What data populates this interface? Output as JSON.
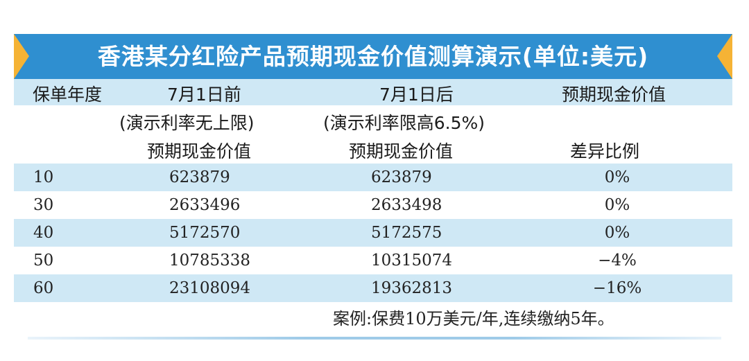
{
  "title": "香港某分红险产品预期现金价值测算演示(单位:美元)",
  "headers": {
    "year": "保单年度",
    "before": "7月1日前",
    "after": "7月1日后",
    "value_label": "预期现金价值",
    "before_note": "(演示利率无上限)",
    "after_note": "(演示利率限高6.5%)",
    "before_sub": "预期现金价值",
    "after_sub": "预期现金价值",
    "ratio_sub": "差异比例"
  },
  "rows": [
    {
      "year": "10",
      "before": "623879",
      "after": "623879",
      "ratio": "0%"
    },
    {
      "year": "30",
      "before": "2633496",
      "after": "2633498",
      "ratio": "0%"
    },
    {
      "year": "40",
      "before": "5172570",
      "after": "5172575",
      "ratio": "0%"
    },
    {
      "year": "50",
      "before": "10785338",
      "after": "10315074",
      "ratio": "−4%"
    },
    {
      "year": "60",
      "before": "23108094",
      "after": "19362813",
      "ratio": "−16%"
    }
  ],
  "footnote": "案例:保费10万美元/年,连续缴纳5年。",
  "colors": {
    "title_bg": "#2f8fd0",
    "accent": "#f5b335",
    "band": "#cfe8f5"
  }
}
